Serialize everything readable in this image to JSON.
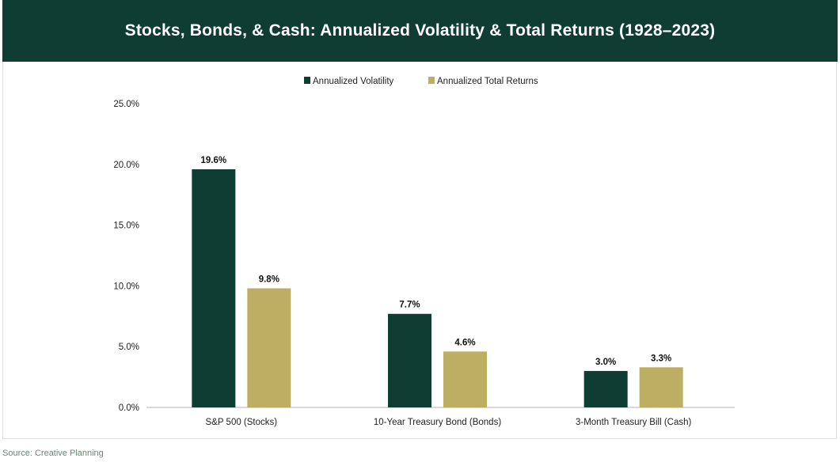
{
  "chart_data": {
    "type": "bar",
    "title": "Stocks, Bonds, & Cash: Annualized Volatility & Total Returns (1928–2023)",
    "categories": [
      "S&P 500 (Stocks)",
      "10-Year Treasury Bond (Bonds)",
      "3-Month Treasury Bill (Cash)"
    ],
    "series": [
      {
        "name": "Annualized Volatility",
        "values": [
          19.6,
          7.7,
          3.0
        ],
        "labels": [
          "19.6%",
          "7.7%",
          "3.0%"
        ],
        "color": "#0f3d33"
      },
      {
        "name": "Annualized Total Returns",
        "values": [
          9.8,
          4.6,
          3.3
        ],
        "labels": [
          "9.8%",
          "4.6%",
          "3.3%"
        ],
        "color": "#bcae62"
      }
    ],
    "yticks": [
      "0.0%",
      "5.0%",
      "10.0%",
      "15.0%",
      "20.0%",
      "25.0%"
    ],
    "ylim": [
      0,
      25
    ],
    "grid": false,
    "legend": "top-center"
  },
  "source": "Source: Creative Planning"
}
